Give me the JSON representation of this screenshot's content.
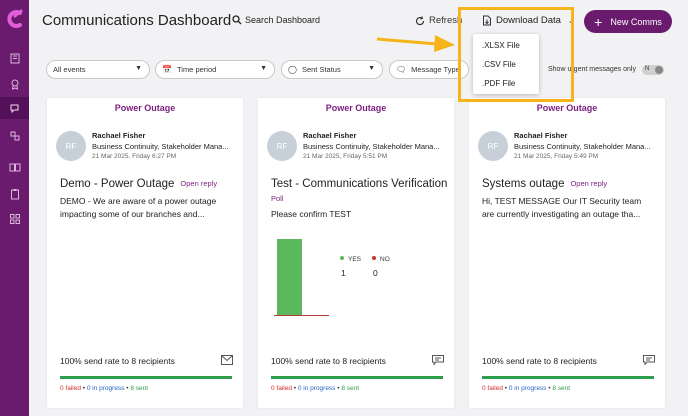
{
  "header": {
    "title": "Communications Dashboard",
    "search_label": "Search Dashboard",
    "refresh_label": "Refresh",
    "download_label": "Download Data",
    "new_comms_label": "New Comms"
  },
  "download_menu": {
    "options": [
      ".XLSX File",
      ".CSV File",
      ".PDF File"
    ]
  },
  "filters": {
    "events": "All events",
    "time_period": "Time period",
    "sent_status": "Sent Status",
    "message_type": "Message Type",
    "urgent_label": "Show urgent messages only",
    "urgent_toggle": "N"
  },
  "cards": [
    {
      "category": "Power Outage",
      "avatar": "RF",
      "name": "Rachael Fisher",
      "role": "Business Continuity, Stakeholder Mana...",
      "date": "21 Mar 2025, Friday 6:27 PM",
      "title": "Demo - Power Outage",
      "tag": "Open reply",
      "body": "DEMO - We are aware of a power outage impacting some of our branches and...",
      "rate": "100% send rate to 8 recipients",
      "failed": "0 failed",
      "in_progress": "0 in progress",
      "sent": "8 sent"
    },
    {
      "category": "Power Outage",
      "avatar": "RF",
      "name": "Rachael Fisher",
      "role": "Business Continuity, Stakeholder Mana...",
      "date": "21 Mar 2025, Friday 5:51 PM",
      "title": "Test - Communications Verification",
      "tag": "Poll",
      "body": "Please confirm TEST",
      "rate": "100% send rate to 8 recipients",
      "failed": "0 failed",
      "in_progress": "0 in progress",
      "sent": "8 sent"
    },
    {
      "category": "Power Outage",
      "avatar": "RF",
      "name": "Rachael Fisher",
      "role": "Business Continuity, Stakeholder Mana...",
      "date": "21 Mar 2025, Friday 5:49 PM",
      "title": "Systems outage",
      "tag": "Open reply",
      "body": "Hi, TEST MESSAGE Our IT Security team are currently investigating an outage tha...",
      "rate": "100% send rate to 8 recipients",
      "failed": "0 failed",
      "in_progress": "0 in progress",
      "sent": "8 sent"
    }
  ],
  "poll": {
    "options": [
      {
        "label": "YES",
        "count": 1,
        "color": "#5cb85c"
      },
      {
        "label": "NO",
        "count": 0,
        "color": "#c0392b"
      }
    ]
  },
  "colors": {
    "brand": "#6a1b6e",
    "accent_purple": "#7b1f7e",
    "highlight": "#f4b41a",
    "sent_green": "#2e9e4a"
  }
}
